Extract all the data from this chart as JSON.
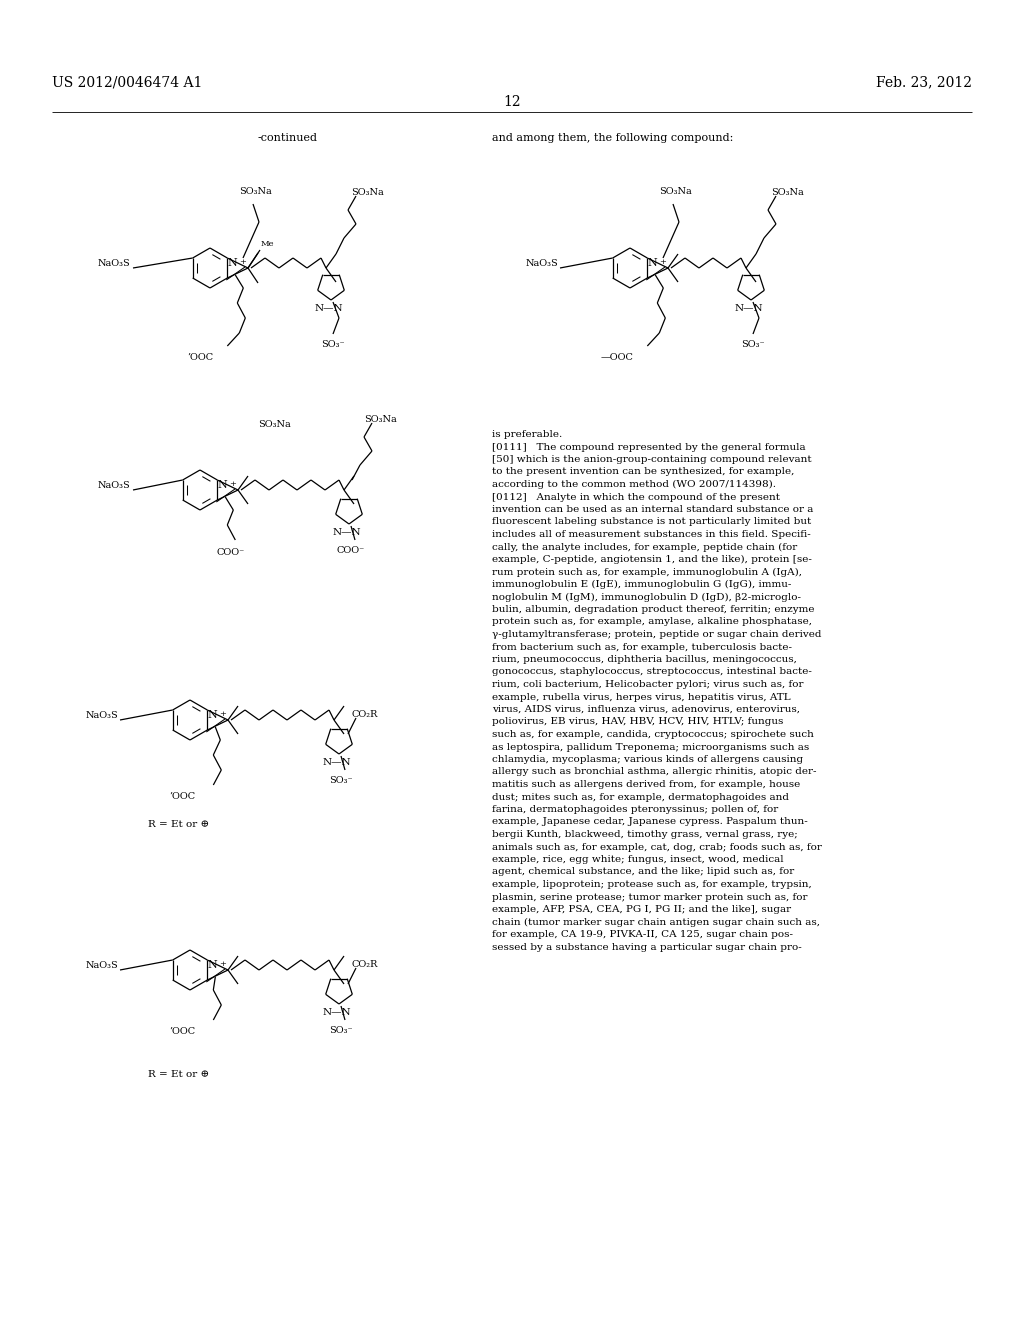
{
  "bg_color": "#ffffff",
  "header_left": "US 2012/0046474 A1",
  "header_right": "Feb. 23, 2012",
  "page_number": "12",
  "body_lines": [
    "[0111]   The compound represented by the general formula",
    "[50] which is the anion-group-containing compound relevant",
    "to the present invention can be synthesized, for example,",
    "according to the common method (WO 2007/114398).",
    "[0112]   Analyte in which the compound of the present",
    "invention can be used as an internal standard substance or a",
    "fluorescent labeling substance is not particularly limited but",
    "includes all of measurement substances in this field. Specifi-",
    "cally, the analyte includes, for example, peptide chain (for",
    "example, C-peptide, angiotensin 1, and the like), protein [se-",
    "rum protein such as, for example, immunoglobulin A (IgA),",
    "immunoglobulin E (IgE), immunoglobulin G (IgG), immu-",
    "noglobulin M (IgM), immunoglobulin D (IgD), β2-microglo-",
    "bulin, albumin, degradation product thereof, ferritin; enzyme",
    "protein such as, for example, amylase, alkaline phosphatase,",
    "γ-glutamyltransferase; protein, peptide or sugar chain derived",
    "from bacterium such as, for example, tuberculosis bacte-",
    "rium, pneumococcus, diphtheria bacillus, meningococcus,",
    "gonococcus, staphylococcus, streptococcus, intestinal bacte-",
    "rium, coli bacterium, Helicobacter pylori; virus such as, for",
    "example, rubella virus, herpes virus, hepatitis virus, ATL",
    "virus, AIDS virus, influenza virus, adenovirus, enterovirus,",
    "poliovirus, EB virus, HAV, HBV, HCV, HIV, HTLV; fungus",
    "such as, for example, candida, cryptococcus; spirochete such",
    "as leptospira, pallidum Treponema; microorganisms such as",
    "chlamydia, mycoplasma; various kinds of allergens causing",
    "allergy such as bronchial asthma, allergic rhinitis, atopic der-",
    "matitis such as allergens derived from, for example, house",
    "dust; mites such as, for example, dermatophagoides and",
    "farina, dermatophagoides pteronyssinus; pollen of, for",
    "example, Japanese cedar, Japanese cypress. Paspalum thun-",
    "bergii Kunth, blackweed, timothy grass, vernal grass, rye;",
    "animals such as, for example, cat, dog, crab; foods such as, for",
    "example, rice, egg white; fungus, insect, wood, medical",
    "agent, chemical substance, and the like; lipid such as, for",
    "example, lipoprotein; protease such as, for example, trypsin,",
    "plasmin, serine protease; tumor marker protein such as, for",
    "example, AFP, PSA, CEA, PG I, PG II; and the like], sugar",
    "chain (tumor marker sugar chain antigen sugar chain such as,",
    "for example, CA 19-9, PIVKA-II, CA 125, sugar chain pos-",
    "sessed by a substance having a particular sugar chain pro-"
  ]
}
